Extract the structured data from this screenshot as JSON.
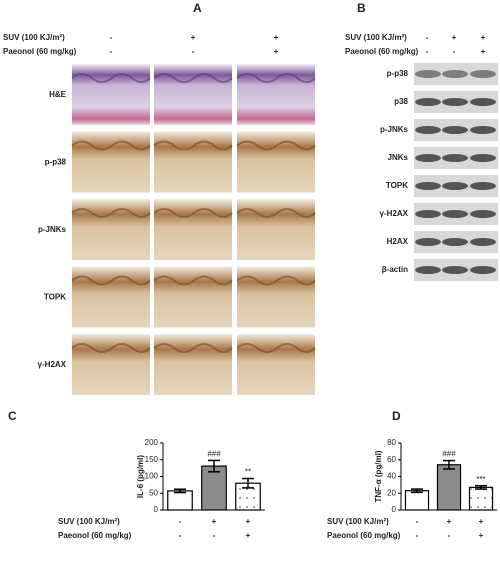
{
  "panel_a": {
    "label": "A",
    "conditions": [
      {
        "name": "SUV (100 KJ/m²)",
        "marks": [
          "-",
          "+",
          "+"
        ]
      },
      {
        "name": "Paeonol (60 mg/kg)",
        "marks": [
          "-",
          "-",
          "+"
        ]
      }
    ],
    "rows": [
      "H&E",
      "p-p38",
      "p-JNKs",
      "TOPK",
      "γ-H2AX"
    ]
  },
  "panel_b": {
    "label": "B",
    "conditions": [
      {
        "name": "SUV (100 KJ/m²)",
        "marks": [
          "-",
          "+",
          "+"
        ]
      },
      {
        "name": "Paeonol (60 mg/kg)",
        "marks": [
          "-",
          "-",
          "+"
        ]
      }
    ],
    "rows": [
      "p-p38",
      "p38",
      "p-JNKs",
      "JNKs",
      "TOPK",
      "γ-H2AX",
      "H2AX",
      "β-actin"
    ]
  },
  "chart_data": [
    {
      "type": "bar",
      "panel_label": "C",
      "y_label": "IL-6 (pg/ml)",
      "categories": [
        null,
        null,
        null
      ],
      "values": [
        57,
        131,
        80
      ],
      "errors": [
        5,
        17,
        14
      ],
      "annotations": [
        null,
        "###",
        "**"
      ],
      "colors": [
        "#ffffff",
        "#8c8c8c",
        "#ffffff"
      ],
      "hatch": [
        false,
        false,
        true
      ],
      "ylim": [
        0,
        200
      ],
      "yticks": [
        0,
        50,
        100,
        150,
        200
      ],
      "conditions": [
        {
          "name": "SUV (100 KJ/m²)",
          "marks": [
            "-",
            "+",
            "+"
          ]
        },
        {
          "name": "Paeonol (60 mg/kg)",
          "marks": [
            "-",
            "-",
            "+"
          ]
        }
      ]
    },
    {
      "type": "bar",
      "panel_label": "D",
      "y_label": "TNF-α (pg/ml)",
      "categories": [
        null,
        null,
        null
      ],
      "values": [
        23,
        54,
        27
      ],
      "errors": [
        2,
        5,
        2
      ],
      "annotations": [
        null,
        "###",
        "***"
      ],
      "colors": [
        "#ffffff",
        "#8c8c8c",
        "#ffffff"
      ],
      "hatch": [
        false,
        false,
        true
      ],
      "ylim": [
        0,
        80
      ],
      "yticks": [
        0,
        20,
        40,
        60,
        80
      ],
      "conditions": [
        {
          "name": "SUV (100 KJ/m²)",
          "marks": [
            "-",
            "+",
            "+"
          ]
        },
        {
          "name": "Paeonol (60 mg/kg)",
          "marks": [
            "-",
            "-",
            "+"
          ]
        }
      ]
    }
  ]
}
